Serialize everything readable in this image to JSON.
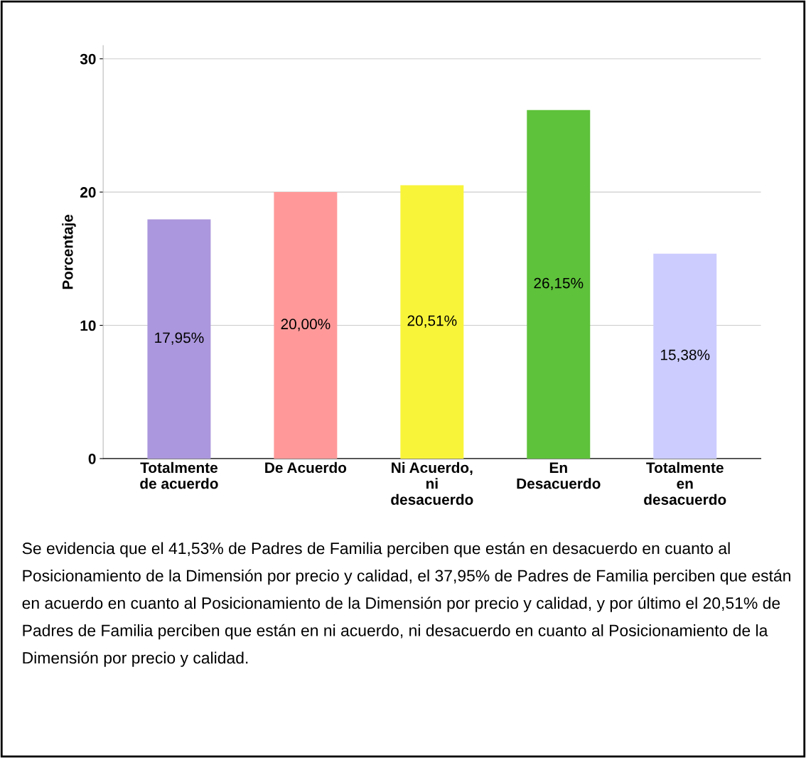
{
  "chart_data": {
    "type": "bar",
    "ylabel": "Porcentaje",
    "categories": [
      "Totalmente\nde acuerdo",
      "De Acuerdo",
      "Ni Acuerdo,\nni\ndesacuerdo",
      "En\nDesacuerdo",
      "Totalmente\nen\ndesacuerdo"
    ],
    "values": [
      17.95,
      20.0,
      20.51,
      26.15,
      15.38
    ],
    "colors": [
      "#ab97dd",
      "#ff9999",
      "#f8f43a",
      "#5ec23a",
      "#ccccff"
    ],
    "value_labels": [
      "17,95%",
      "20,00%",
      "20,51%",
      "26,15%",
      "15,38%"
    ],
    "ylim": [
      0,
      31
    ],
    "yticks": [
      0,
      10,
      20,
      30
    ],
    "grid": "y",
    "annotations": [
      "Se evidencia que el 41,53% de Padres de Familia perciben que están en desacuerdo en cuanto al Posicionamiento de la Dimensión por precio y calidad, el 37,95% de Padres de Familia perciben que están en acuerdo en cuanto al Posicionamiento de la Dimensión por precio y calidad, y por último el 20,51% de Padres de Familia perciben que están en ni acuerdo, ni desacuerdo en cuanto al Posicionamiento de la Dimensión por precio y calidad."
    ]
  }
}
